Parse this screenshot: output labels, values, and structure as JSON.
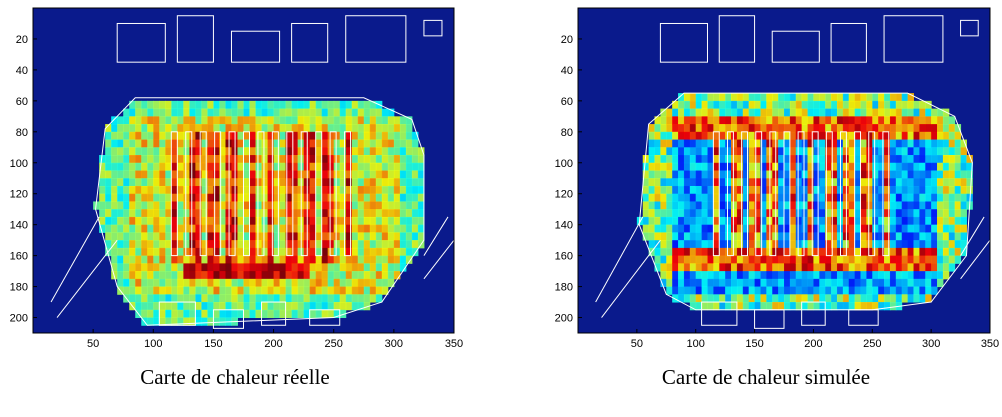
{
  "colors": {
    "background": "#0a1a8c",
    "plan_lines": "#ffffff",
    "heat_low": "#3fd0ff",
    "heat_mid": "#a8f05a",
    "heat_high": "#ff2a00"
  },
  "chart_data": [
    {
      "type": "heatmap",
      "title": "",
      "caption": "Carte de chaleur réelle",
      "xlabel": "",
      "ylabel": "",
      "xlim": [
        0,
        350
      ],
      "ylim": [
        210,
        0
      ],
      "x_ticks": [
        "50",
        "100",
        "150",
        "200",
        "250",
        "300",
        "350"
      ],
      "y_ticks": [
        "20",
        "40",
        "60",
        "80",
        "100",
        "120",
        "140",
        "160",
        "180",
        "200"
      ],
      "colormap": "jet",
      "background_value": "dark-blue",
      "heat_region_desc": "dense coverage across the central store area"
    },
    {
      "type": "heatmap",
      "title": "",
      "caption": "Carte de chaleur simulée",
      "xlabel": "",
      "ylabel": "",
      "xlim": [
        0,
        350
      ],
      "ylim": [
        210,
        0
      ],
      "x_ticks": [
        "50",
        "100",
        "150",
        "200",
        "250",
        "300",
        "350"
      ],
      "y_ticks": [
        "20",
        "40",
        "60",
        "80",
        "100",
        "120",
        "140",
        "160",
        "180",
        "200"
      ],
      "colormap": "jet",
      "background_value": "dark-blue",
      "heat_region_desc": "heat concentrated along aisles and perimeter paths"
    }
  ]
}
